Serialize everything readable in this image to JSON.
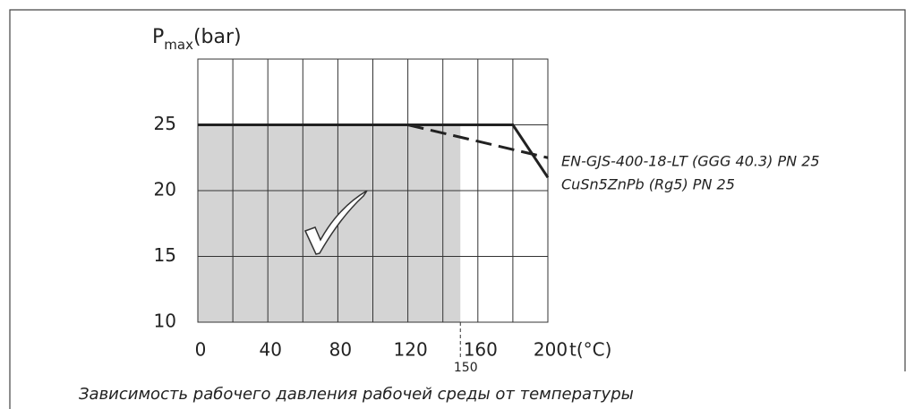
{
  "chart_data": {
    "type": "line",
    "ylabel": "P",
    "ylabel_sub": "max",
    "ylabel_unit": "(bar)",
    "xlabel": "t(°C)",
    "caption": "Зависимость рабочего давления рабочей среды от температуры",
    "xlim": [
      0,
      200
    ],
    "xticks": [
      0,
      40,
      80,
      120,
      160,
      200
    ],
    "ylim": [
      10,
      30
    ],
    "yticks": [
      10,
      15,
      20,
      25
    ],
    "grid": true,
    "shaded_area": {
      "x": [
        0,
        150
      ],
      "y": [
        10,
        25
      ],
      "color": "#d4d4d4"
    },
    "marker_x": 150,
    "series": [
      {
        "name": "EN-GJS-400-18-LT (GGG 40.3) PN 25",
        "color": "#222222",
        "dash": true,
        "x": [
          120,
          200
        ],
        "values": [
          25,
          22.5
        ]
      },
      {
        "name": "CuSn5ZnPb (Rg5) PN 25",
        "color": "#222222",
        "dash": false,
        "x": [
          0,
          180,
          200
        ],
        "values": [
          25,
          25,
          21
        ]
      }
    ]
  }
}
